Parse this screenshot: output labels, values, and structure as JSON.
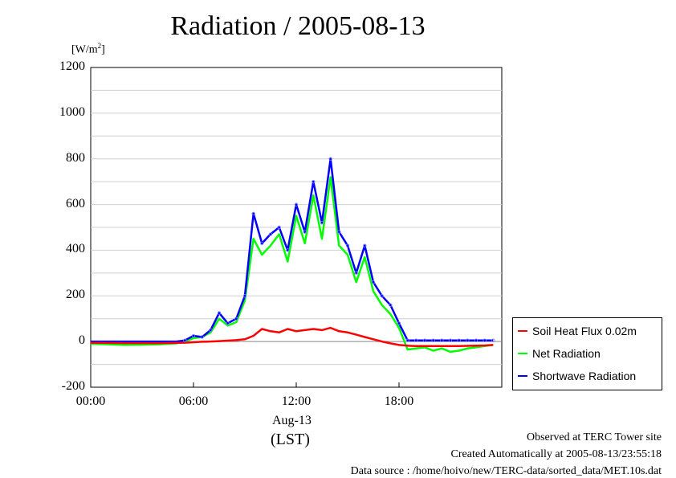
{
  "title": "Radiation / 2005-08-13",
  "unit_label": "[W/m",
  "unit_sup": "2",
  "unit_close": "]",
  "y_ticks": [
    "1200",
    "1000",
    "800",
    "600",
    "400",
    "200",
    "0",
    "-200"
  ],
  "x_ticks": [
    "00:00",
    "06:00",
    "12:00",
    "18:00"
  ],
  "date_label": "Aug-13",
  "tz_label": "(LST)",
  "footer": {
    "observed": "Observed at TERC Tower site",
    "created": "Created Automatically at 2005-08-13/23:55:18",
    "source": "Data source : /home/hoivo/new/TERC-data/sorted_data/MET.10s.dat"
  },
  "chart_data": {
    "type": "line",
    "title": "Radiation / 2005-08-13",
    "xlabel": "Aug-13 (LST)",
    "ylabel": "[W/m2]",
    "x_unit": "hour",
    "xlim": [
      0,
      24
    ],
    "ylim": [
      -200,
      1200
    ],
    "grid": true,
    "legend_position": "bottom-right",
    "x": [
      0,
      1,
      2,
      3,
      4,
      5,
      5.5,
      6,
      6.5,
      7,
      7.5,
      8,
      8.5,
      9,
      9.5,
      10,
      10.5,
      11,
      11.5,
      12,
      12.5,
      13,
      13.5,
      14,
      14.5,
      15,
      15.5,
      16,
      16.5,
      17,
      17.5,
      18,
      18.5,
      19,
      19.5,
      20,
      20.5,
      21,
      21.5,
      22,
      22.5,
      23,
      23.5
    ],
    "series": [
      {
        "name": "Soil Heat Flux 0.02m",
        "color": "#ff0000",
        "values": [
          -5,
          -6,
          -7,
          -7,
          -7,
          -6,
          -5,
          -3,
          -1,
          0,
          2,
          4,
          6,
          10,
          25,
          55,
          45,
          40,
          55,
          45,
          50,
          55,
          50,
          60,
          45,
          40,
          30,
          20,
          10,
          0,
          -8,
          -15,
          -18,
          -20,
          -20,
          -20,
          -20,
          -20,
          -20,
          -19,
          -18,
          -17,
          -15
        ]
      },
      {
        "name": "Net Radiation",
        "color": "#00ff00",
        "values": [
          -10,
          -12,
          -15,
          -14,
          -12,
          -8,
          0,
          15,
          20,
          40,
          100,
          70,
          85,
          180,
          450,
          380,
          420,
          470,
          350,
          550,
          430,
          640,
          450,
          720,
          420,
          380,
          260,
          370,
          220,
          160,
          120,
          60,
          -35,
          -30,
          -25,
          -40,
          -30,
          -45,
          -40,
          -30,
          -25,
          -20,
          -15
        ]
      },
      {
        "name": "Shortwave Radiation",
        "color": "#0000ff",
        "values": [
          0,
          0,
          0,
          0,
          0,
          0,
          5,
          25,
          20,
          50,
          125,
          80,
          100,
          200,
          560,
          430,
          470,
          500,
          400,
          600,
          480,
          700,
          520,
          800,
          480,
          420,
          300,
          420,
          260,
          200,
          160,
          80,
          5,
          5,
          5,
          5,
          5,
          5,
          5,
          5,
          5,
          5,
          5
        ]
      }
    ]
  }
}
